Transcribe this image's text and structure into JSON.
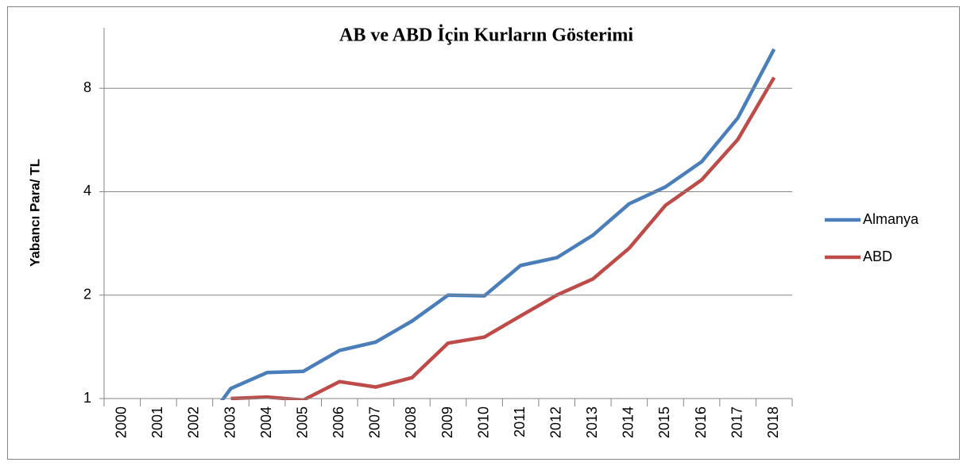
{
  "chart_data": {
    "type": "line",
    "title": "AB ve ABD İçin Kurların Gösterimi",
    "y_label": "Yabancı Para/ TL",
    "categories": [
      "2000",
      "2001",
      "2002",
      "2003",
      "2004",
      "2005",
      "2006",
      "2007",
      "2008",
      "2009",
      "2010",
      "2011",
      "2012",
      "2013",
      "2014",
      "2015",
      "2016",
      "2017",
      "2018"
    ],
    "series": [
      {
        "name": "Almanya",
        "color": "#4a7ebb",
        "values": [
          null,
          null,
          0.77,
          1.07,
          1.19,
          1.2,
          1.38,
          1.46,
          1.68,
          2.0,
          1.99,
          2.44,
          2.57,
          2.99,
          3.69,
          4.13,
          4.89,
          6.56,
          10.4
        ]
      },
      {
        "name": "ABD",
        "color": "#be4b48",
        "values": [
          null,
          null,
          null,
          1.0,
          1.01,
          0.99,
          1.12,
          1.08,
          1.15,
          1.45,
          1.51,
          1.74,
          2.0,
          2.23,
          2.74,
          3.65,
          4.33,
          5.68,
          8.6
        ]
      }
    ],
    "ylim": [
      1,
      12
    ],
    "yticks": [
      1,
      2,
      4,
      8
    ],
    "log_scale": true,
    "log_base": 2,
    "grid": true,
    "legend": "right"
  }
}
